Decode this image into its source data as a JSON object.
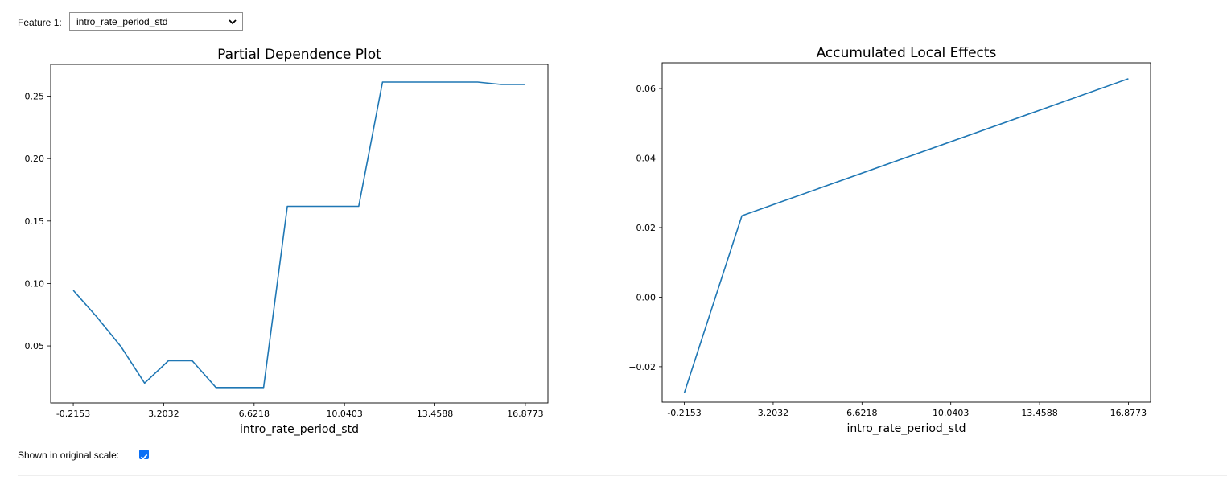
{
  "controls": {
    "feature_label": "Feature 1:",
    "feature_value": "intro_rate_period_std",
    "scale_label": "Shown in original scale:",
    "scale_checked": true
  },
  "chart_data": [
    {
      "type": "line",
      "title": "Partial Dependence Plot",
      "xlabel": "intro_rate_period_std",
      "ylabel": "",
      "xlim": [
        -1.069,
        17.731
      ],
      "ylim": [
        0.0043,
        0.2755
      ],
      "xticks": [
        -0.2153,
        3.2032,
        6.6218,
        10.0403,
        13.4588,
        16.8773
      ],
      "xtick_labels": [
        "-0.2153",
        "3.2032",
        "6.6218",
        "10.0403",
        "13.4588",
        "16.8773"
      ],
      "yticks": [
        0.05,
        0.1,
        0.15,
        0.2,
        0.25
      ],
      "ytick_labels": [
        "0.05",
        "0.10",
        "0.15",
        "0.20",
        "0.25"
      ],
      "grid": false,
      "series": [
        {
          "color": "#1f77b4",
          "x": [
            -0.2153,
            0.684,
            1.583,
            2.482,
            3.382,
            4.281,
            5.18,
            6.079,
            6.979,
            7.878,
            8.777,
            9.676,
            10.576,
            11.475,
            12.374,
            13.273,
            14.173,
            15.072,
            15.971,
            16.877
          ],
          "y": [
            0.0945,
            0.073,
            0.0496,
            0.0202,
            0.0381,
            0.0381,
            0.0167,
            0.0167,
            0.0167,
            0.1618,
            0.1618,
            0.1618,
            0.1618,
            0.2613,
            0.2613,
            0.2613,
            0.2613,
            0.2613,
            0.2594,
            0.2594
          ]
        }
      ]
    },
    {
      "type": "line",
      "title": "Accumulated Local Effects",
      "xlabel": "intro_rate_period_std",
      "ylabel": "",
      "xlim": [
        -1.069,
        17.731
      ],
      "ylim": [
        -0.0302,
        0.0674
      ],
      "xticks": [
        -0.2153,
        3.2032,
        6.6218,
        10.0403,
        13.4588,
        16.8773
      ],
      "xtick_labels": [
        "-0.2153",
        "3.2032",
        "6.6218",
        "10.0403",
        "13.4588",
        "16.8773"
      ],
      "yticks": [
        -0.02,
        0.0,
        0.02,
        0.04,
        0.06
      ],
      "ytick_labels": [
        "−0.02",
        "0.00",
        "0.02",
        "0.04",
        "0.06"
      ],
      "grid": false,
      "series": [
        {
          "color": "#1f77b4",
          "x": [
            -0.2153,
            2.0,
            16.8773
          ],
          "y": [
            -0.0275,
            0.0234,
            0.0628
          ]
        }
      ]
    }
  ]
}
